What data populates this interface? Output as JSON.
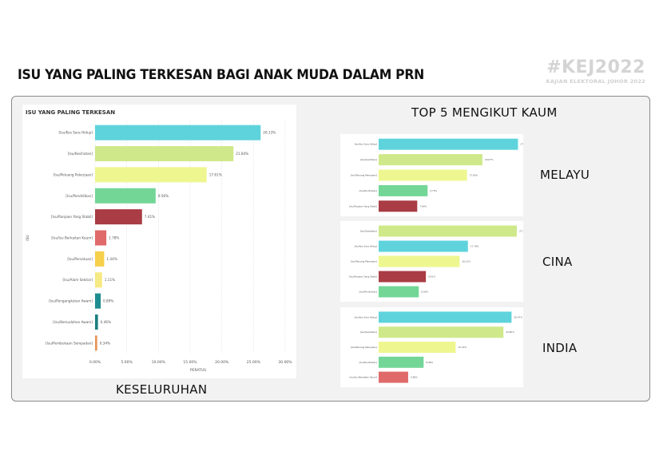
{
  "page": {
    "title": "ISU YANG PALING TERKESAN BAGI ANAK MUDA DALAM PRN",
    "brand_tag": "#KEJ2022",
    "brand_sub": "KAJIAN ELEKTORAL JOHOR 2022",
    "top5_title": "TOP 5 MENGIKUT KAUM",
    "overall_label": "KESELURUHAN",
    "melayu_label": "MELAYU",
    "cina_label": "CINA",
    "india_label": "INDIA"
  },
  "chart_data": [
    {
      "type": "bar",
      "orientation": "horizontal",
      "title": "ISU YANG PALING TERKESAN",
      "xlabel": "PERATUS",
      "ylabel": "ISU",
      "xlim": [
        0,
        30
      ],
      "xticks": [
        "0.00%",
        "5.00%",
        "10.00%",
        "15.00%",
        "20.00%",
        "25.00%",
        "30.00%"
      ],
      "categories": [
        "[Isu/Kos Sara Hidup]",
        "[Isu/Kesihatan]",
        "[Isu/Peluang Pekerjaan]",
        "[Isu/Pendidikan]",
        "[Isu/Ranjaan Yang Stabil]",
        "[Isu/Isu Berkaitan Kaum]",
        "[Isu/Persatuan]",
        "[Isu/Alam Sekitar]",
        "[Isu/Pengangkutan Awam]",
        "[Isu/Kemudahan Awam]",
        "[Isu/Pembukaan Sempadan]"
      ],
      "values": [
        26.13,
        21.84,
        17.61,
        9.56,
        7.41,
        1.78,
        1.44,
        1.11,
        0.89,
        0.46,
        0.34
      ],
      "value_labels": [
        "26.13%",
        "21.84%",
        "17.61%",
        "9.56%",
        "7.41%",
        "1.78%",
        "1.44%",
        "1.11%",
        "0.89%",
        "0.46%",
        "0.34%"
      ],
      "colors": [
        "#5fd3dc",
        "#cfe98a",
        "#eef78f",
        "#73d697",
        "#a93c44",
        "#e06a6a",
        "#f6d04b",
        "#f6ea84",
        "#1e8d91",
        "#1c7f80",
        "#e8955a"
      ]
    },
    {
      "type": "bar",
      "orientation": "horizontal",
      "group": "MELAYU",
      "xlim": [
        0,
        30
      ],
      "categories": [
        "[Isu/Kos Sara Hidup]",
        "[Isu/Kesihatan]",
        "[Isu/Peluang Pekerjaan]",
        "[Isu/Pendidikan]",
        "[Isu/Ranjaan Yang Stabil]"
      ],
      "values": [
        27.75,
        20.67,
        17.6,
        9.75,
        7.69
      ],
      "value_labels": [
        "27.75%",
        "20.67%",
        "17.60%",
        "9.75%",
        "7.69%"
      ],
      "colors": [
        "#5fd3dc",
        "#cfe98a",
        "#eef78f",
        "#73d697",
        "#a93c44"
      ]
    },
    {
      "type": "bar",
      "orientation": "horizontal",
      "group": "CINA",
      "xlim": [
        0,
        30
      ],
      "categories": [
        "[Isu/Kesihatan]",
        "[Isu/Kos Sara Hidup]",
        "[Isu/Peluang Pekerjaan]",
        "[Isu/Ranjaan Yang Stabil]",
        "[Isu/Pendidikan]"
      ],
      "values": [
        27.53,
        17.78,
        16.13,
        9.41,
        8.0
      ],
      "value_labels": [
        "27.53%",
        "17.78%",
        "16.13%",
        "9.41%",
        "8.00%"
      ],
      "colors": [
        "#cfe98a",
        "#5fd3dc",
        "#eef78f",
        "#a93c44",
        "#73d697"
      ]
    },
    {
      "type": "bar",
      "orientation": "horizontal",
      "group": "INDIA",
      "xlim": [
        0,
        30
      ],
      "categories": [
        "[Isu/Kos Sara Hidup]",
        "[Isu/Kesihatan]",
        "[Isu/Peluang Pekerjaan]",
        "[Isu/Pendidikan]",
        "[Isu/Isu Berkaitan Kaum]"
      ],
      "values": [
        26.47,
        24.85,
        15.33,
        8.96,
        5.88
      ],
      "value_labels": [
        "26.47%",
        "24.85%",
        "15.33%",
        "8.96%",
        "5.88%"
      ],
      "colors": [
        "#5fd3dc",
        "#cfe98a",
        "#eef78f",
        "#73d697",
        "#e06a6a"
      ]
    }
  ]
}
